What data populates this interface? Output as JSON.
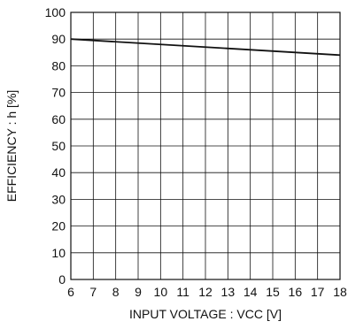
{
  "chart_data": {
    "type": "line",
    "xlabel": "INPUT VOLTAGE : VCC [V]",
    "ylabel": "EFFICIENCY : h [%]",
    "xlim": [
      6,
      18
    ],
    "ylim": [
      0,
      100
    ],
    "x_ticks": [
      6,
      7,
      8,
      9,
      10,
      11,
      12,
      13,
      14,
      15,
      16,
      17,
      18
    ],
    "y_ticks": [
      0,
      10,
      20,
      30,
      40,
      50,
      60,
      70,
      80,
      90,
      100
    ],
    "grid": true,
    "series": [
      {
        "x": [
          6,
          12,
          18
        ],
        "y": [
          90,
          87,
          84
        ]
      }
    ],
    "colors": {
      "line": "#111111",
      "grid": "#111111"
    }
  }
}
